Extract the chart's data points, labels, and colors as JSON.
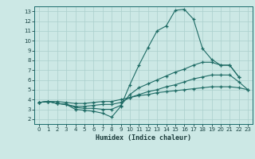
{
  "xlabel": "Humidex (Indice chaleur)",
  "xlim": [
    -0.5,
    23.5
  ],
  "ylim": [
    1.5,
    13.5
  ],
  "xticks": [
    0,
    1,
    2,
    3,
    4,
    5,
    6,
    7,
    8,
    9,
    10,
    11,
    12,
    13,
    14,
    15,
    16,
    17,
    18,
    19,
    20,
    21,
    22,
    23
  ],
  "yticks": [
    2,
    3,
    4,
    5,
    6,
    7,
    8,
    9,
    10,
    11,
    12,
    13
  ],
  "bg_color": "#cce8e5",
  "line_color": "#1e6b65",
  "grid_color": "#aacfcc",
  "line1_x": [
    0,
    1,
    2,
    3,
    4,
    5,
    6,
    7,
    8,
    9,
    10,
    11,
    12,
    13,
    14,
    15,
    16,
    17,
    18,
    19,
    20,
    21,
    22
  ],
  "line1_y": [
    3.7,
    3.8,
    3.6,
    3.5,
    3.0,
    2.9,
    2.8,
    2.6,
    2.2,
    3.3,
    5.5,
    7.5,
    9.3,
    11.0,
    11.5,
    13.1,
    13.2,
    12.2,
    9.2,
    8.1,
    7.5,
    7.5,
    6.3
  ],
  "line2_x": [
    0,
    1,
    2,
    3,
    4,
    5,
    6,
    7,
    8,
    9,
    10,
    11,
    12,
    13,
    14,
    15,
    16,
    17,
    18,
    19,
    20,
    21,
    22
  ],
  "line2_y": [
    3.7,
    3.8,
    3.6,
    3.5,
    3.2,
    3.1,
    3.1,
    3.0,
    3.0,
    3.4,
    4.5,
    5.2,
    5.6,
    6.0,
    6.4,
    6.8,
    7.1,
    7.5,
    7.8,
    7.8,
    7.5,
    7.5,
    6.3
  ],
  "line3_x": [
    0,
    1,
    2,
    3,
    4,
    5,
    6,
    7,
    8,
    9,
    10,
    11,
    12,
    13,
    14,
    15,
    16,
    17,
    18,
    19,
    20,
    21,
    22,
    23
  ],
  "line3_y": [
    3.7,
    3.8,
    3.6,
    3.5,
    3.3,
    3.3,
    3.4,
    3.5,
    3.5,
    3.7,
    4.2,
    4.5,
    4.8,
    5.0,
    5.3,
    5.5,
    5.8,
    6.1,
    6.3,
    6.5,
    6.5,
    6.5,
    5.8,
    5.0
  ],
  "line4_x": [
    0,
    1,
    2,
    3,
    4,
    5,
    6,
    7,
    8,
    9,
    10,
    11,
    12,
    13,
    14,
    15,
    16,
    17,
    18,
    19,
    20,
    21,
    22,
    23
  ],
  "line4_y": [
    3.7,
    3.8,
    3.8,
    3.7,
    3.6,
    3.6,
    3.7,
    3.8,
    3.8,
    4.0,
    4.2,
    4.4,
    4.5,
    4.7,
    4.8,
    4.9,
    5.0,
    5.1,
    5.2,
    5.3,
    5.3,
    5.3,
    5.2,
    5.0
  ]
}
